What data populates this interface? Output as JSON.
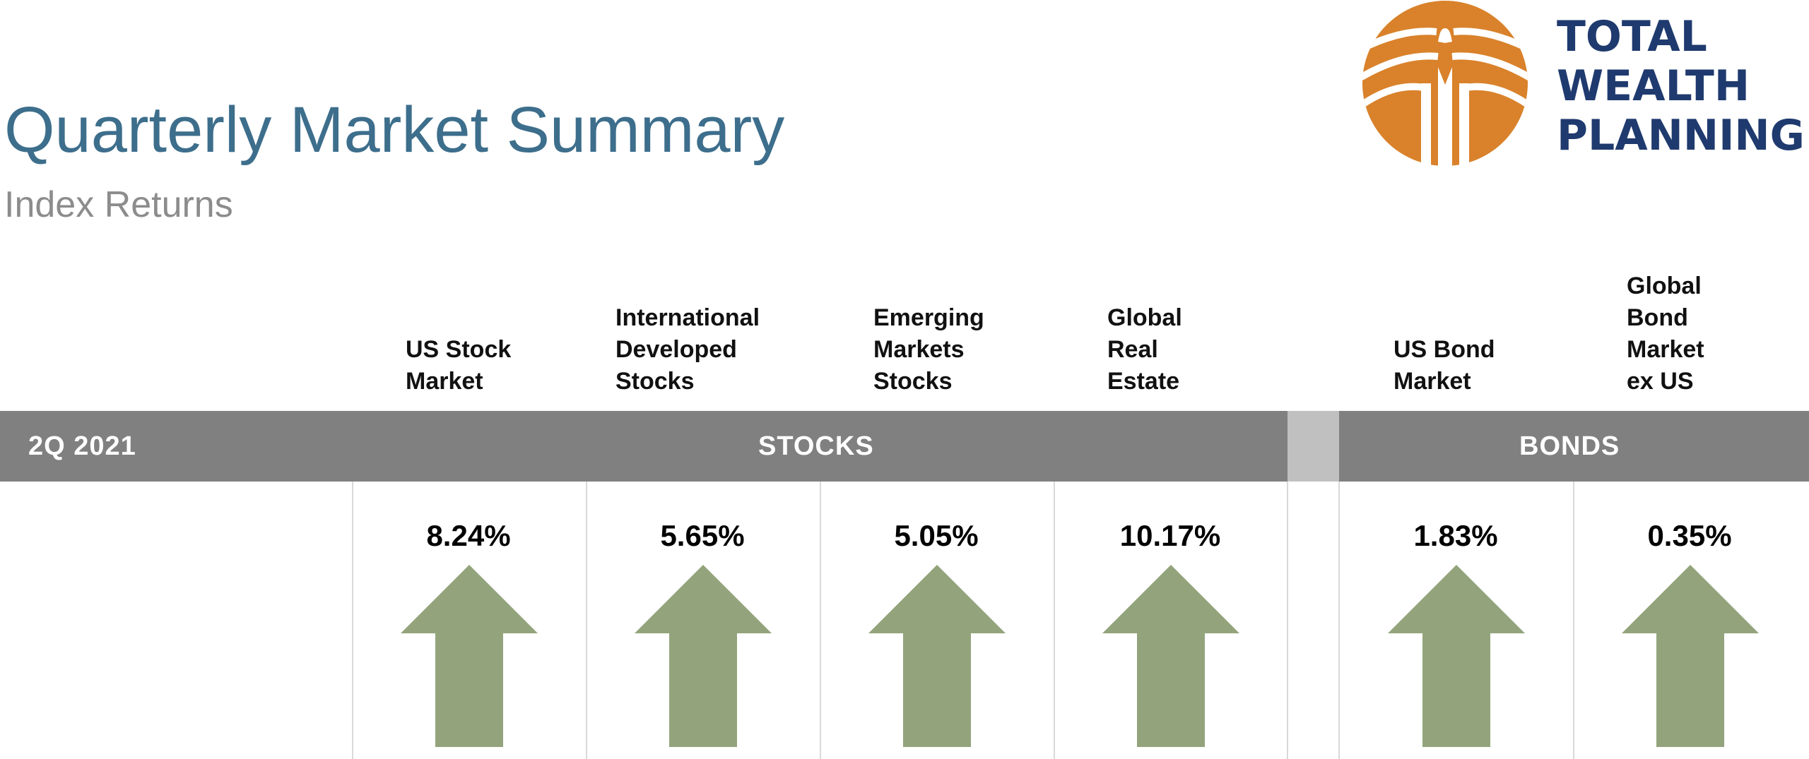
{
  "header": {
    "title": "Quarterly Market Summary",
    "subtitle": "Index Returns"
  },
  "logo": {
    "lines": [
      "TOTAL",
      "WEALTH",
      "PLANNING"
    ],
    "emblem_color": "#d9822b",
    "text_color": "#1f3a6e"
  },
  "table": {
    "period_label": "2Q 2021",
    "groups": [
      {
        "label": "STOCKS"
      },
      {
        "label": "BONDS"
      }
    ],
    "columns": [
      {
        "label_lines": [
          "US Stock",
          "Market"
        ],
        "value": "8.24%",
        "direction": "up"
      },
      {
        "label_lines": [
          "International",
          "Developed",
          "Stocks"
        ],
        "value": "5.65%",
        "direction": "up"
      },
      {
        "label_lines": [
          "Emerging",
          "Markets",
          "Stocks"
        ],
        "value": "5.05%",
        "direction": "up"
      },
      {
        "label_lines": [
          "Global",
          "Real",
          "Estate"
        ],
        "value": "10.17%",
        "direction": "up"
      },
      {
        "label_lines": [
          "US Bond",
          "Market"
        ],
        "value": "1.83%",
        "direction": "up"
      },
      {
        "label_lines": [
          "Global",
          "Bond",
          "Market",
          "ex US"
        ],
        "value": "0.35%",
        "direction": "up"
      }
    ]
  },
  "colors": {
    "title": "#3d6e8c",
    "subtitle": "#8c8c8c",
    "band": "#808080",
    "band_gap": "#c0c0c0",
    "arrow_up": "#93a47c"
  }
}
